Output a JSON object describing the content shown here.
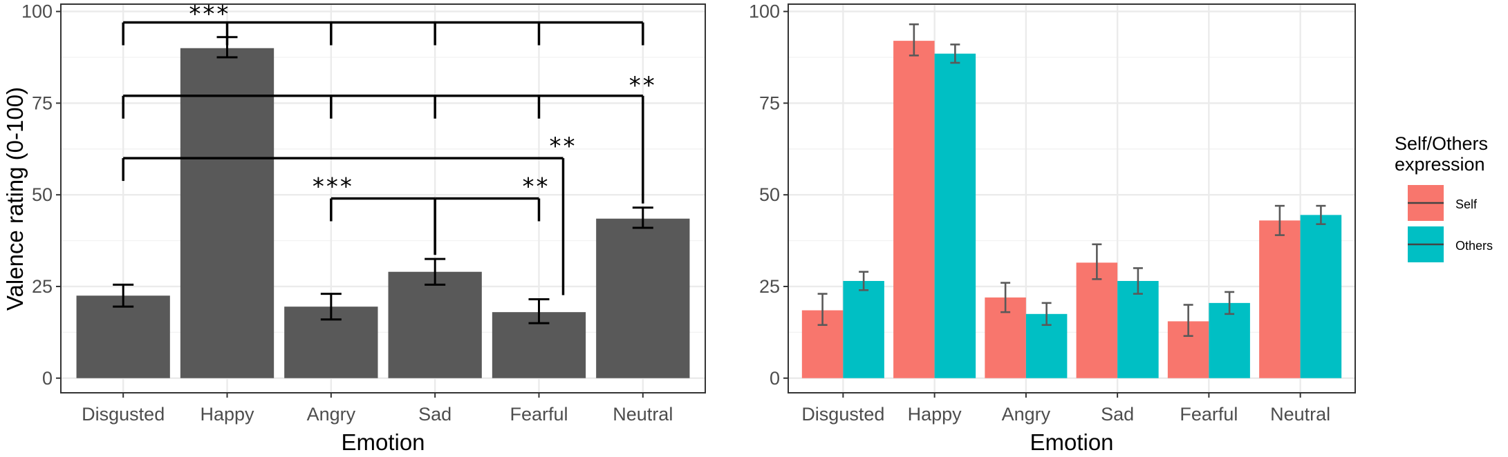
{
  "chart_data": [
    {
      "type": "bar",
      "categories": [
        "Disgusted",
        "Happy",
        "Angry",
        "Sad",
        "Fearful",
        "Neutral"
      ],
      "values": [
        22.5,
        90,
        19.5,
        29,
        18,
        43.5
      ],
      "errors": [
        [
          19.5,
          25.5
        ],
        [
          87.5,
          93
        ],
        [
          16,
          23
        ],
        [
          25.5,
          32.5
        ],
        [
          15,
          21.5
        ],
        [
          41,
          46.5
        ]
      ],
      "xlabel": "Emotion",
      "ylabel": "Valence rating (0-100)",
      "ylim": [
        -4,
        102
      ],
      "yticks": [
        0,
        25,
        50,
        75,
        100
      ],
      "bar_color": "#595959",
      "grid": true,
      "significance": [
        {
          "from": "Happy",
          "to": [
            "Disgusted",
            "Angry",
            "Sad",
            "Fearful",
            "Neutral"
          ],
          "y": 97,
          "label": "***"
        },
        {
          "from": "Neutral",
          "to": [
            "Disgusted",
            "Angry",
            "Sad",
            "Fearful"
          ],
          "y": 77,
          "label": "**"
        },
        {
          "from": "Fearful",
          "to": [
            "Disgusted"
          ],
          "y": 60,
          "label": "**"
        },
        {
          "from": "Sad",
          "to": [
            "Angry"
          ],
          "y": 49,
          "label": "***"
        },
        {
          "from": "Sad",
          "to": [
            "Fearful"
          ],
          "y": 49,
          "label": "**"
        }
      ]
    },
    {
      "type": "bar",
      "categories": [
        "Disgusted",
        "Happy",
        "Angry",
        "Sad",
        "Fearful",
        "Neutral"
      ],
      "series": [
        {
          "name": "Self",
          "values": [
            18.5,
            92,
            22,
            31.5,
            15.5,
            43
          ],
          "errors": [
            [
              14.5,
              23
            ],
            [
              88,
              96.5
            ],
            [
              18,
              26
            ],
            [
              27,
              36.5
            ],
            [
              11.5,
              20
            ],
            [
              39,
              47
            ]
          ],
          "color": "#F8766D"
        },
        {
          "name": "Others",
          "values": [
            26.5,
            88.5,
            17.5,
            26.5,
            20.5,
            44.5
          ],
          "errors": [
            [
              24,
              29
            ],
            [
              86,
              91
            ],
            [
              14.5,
              20.5
            ],
            [
              23,
              30
            ],
            [
              17.5,
              23.5
            ],
            [
              42,
              47
            ]
          ],
          "color": "#00BFC4"
        }
      ],
      "xlabel": "Emotion",
      "ylabel": "",
      "ylim": [
        -4,
        102
      ],
      "yticks": [
        0,
        25,
        50,
        75,
        100
      ],
      "grid": true,
      "legend": {
        "title_line1": "Self/Others",
        "title_line2": "expression",
        "position": "right"
      }
    }
  ]
}
